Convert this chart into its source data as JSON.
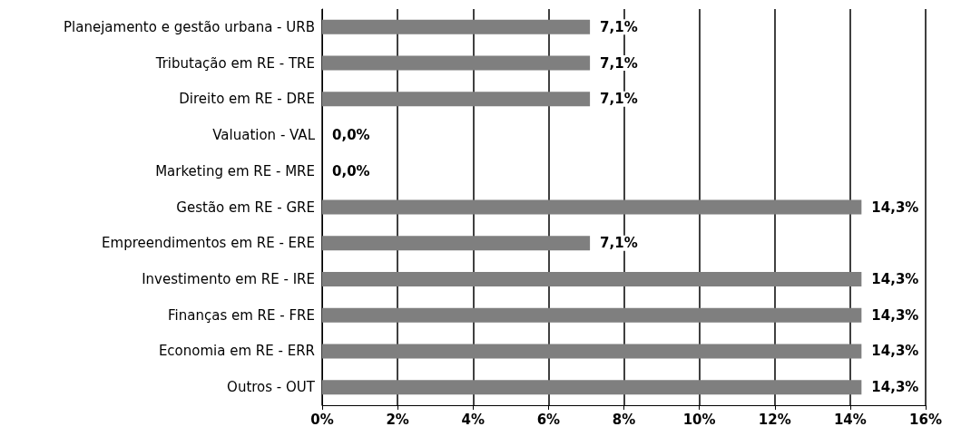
{
  "chart_data": {
    "type": "bar",
    "orientation": "horizontal",
    "categories": [
      "Planejamento e gestão urbana - URB",
      "Tributação em RE - TRE",
      "Direito em RE - DRE",
      "Valuation - VAL",
      "Marketing em RE - MRE",
      "Gestão em RE - GRE",
      "Empreendimentos em RE - ERE",
      "Investimento em RE - IRE",
      "Finanças em RE - FRE",
      "Economia em RE - ERR",
      "Outros - OUT"
    ],
    "values": [
      7.1,
      7.1,
      7.1,
      0,
      0,
      14.3,
      7.1,
      14.3,
      14.3,
      14.3,
      14.3
    ],
    "value_labels": [
      "7,1%",
      "7,1%",
      "7,1%",
      "0,0%",
      "0,0%",
      "14,3%",
      "7,1%",
      "14,3%",
      "14,3%",
      "14,3%",
      "14,3%"
    ],
    "color": "#7f7f7f",
    "xlim": [
      0,
      16
    ],
    "xticks": [
      {
        "value": 0,
        "label": "0%"
      },
      {
        "value": 2,
        "label": "2%"
      },
      {
        "value": 4,
        "label": "4%"
      },
      {
        "value": 6,
        "label": "6%"
      },
      {
        "value": 8,
        "label": "8%"
      },
      {
        "value": 10,
        "label": "10%"
      },
      {
        "value": 12,
        "label": "12%"
      },
      {
        "value": 14,
        "label": "14%"
      },
      {
        "value": 16,
        "label": "16%"
      }
    ],
    "grid": "x"
  }
}
